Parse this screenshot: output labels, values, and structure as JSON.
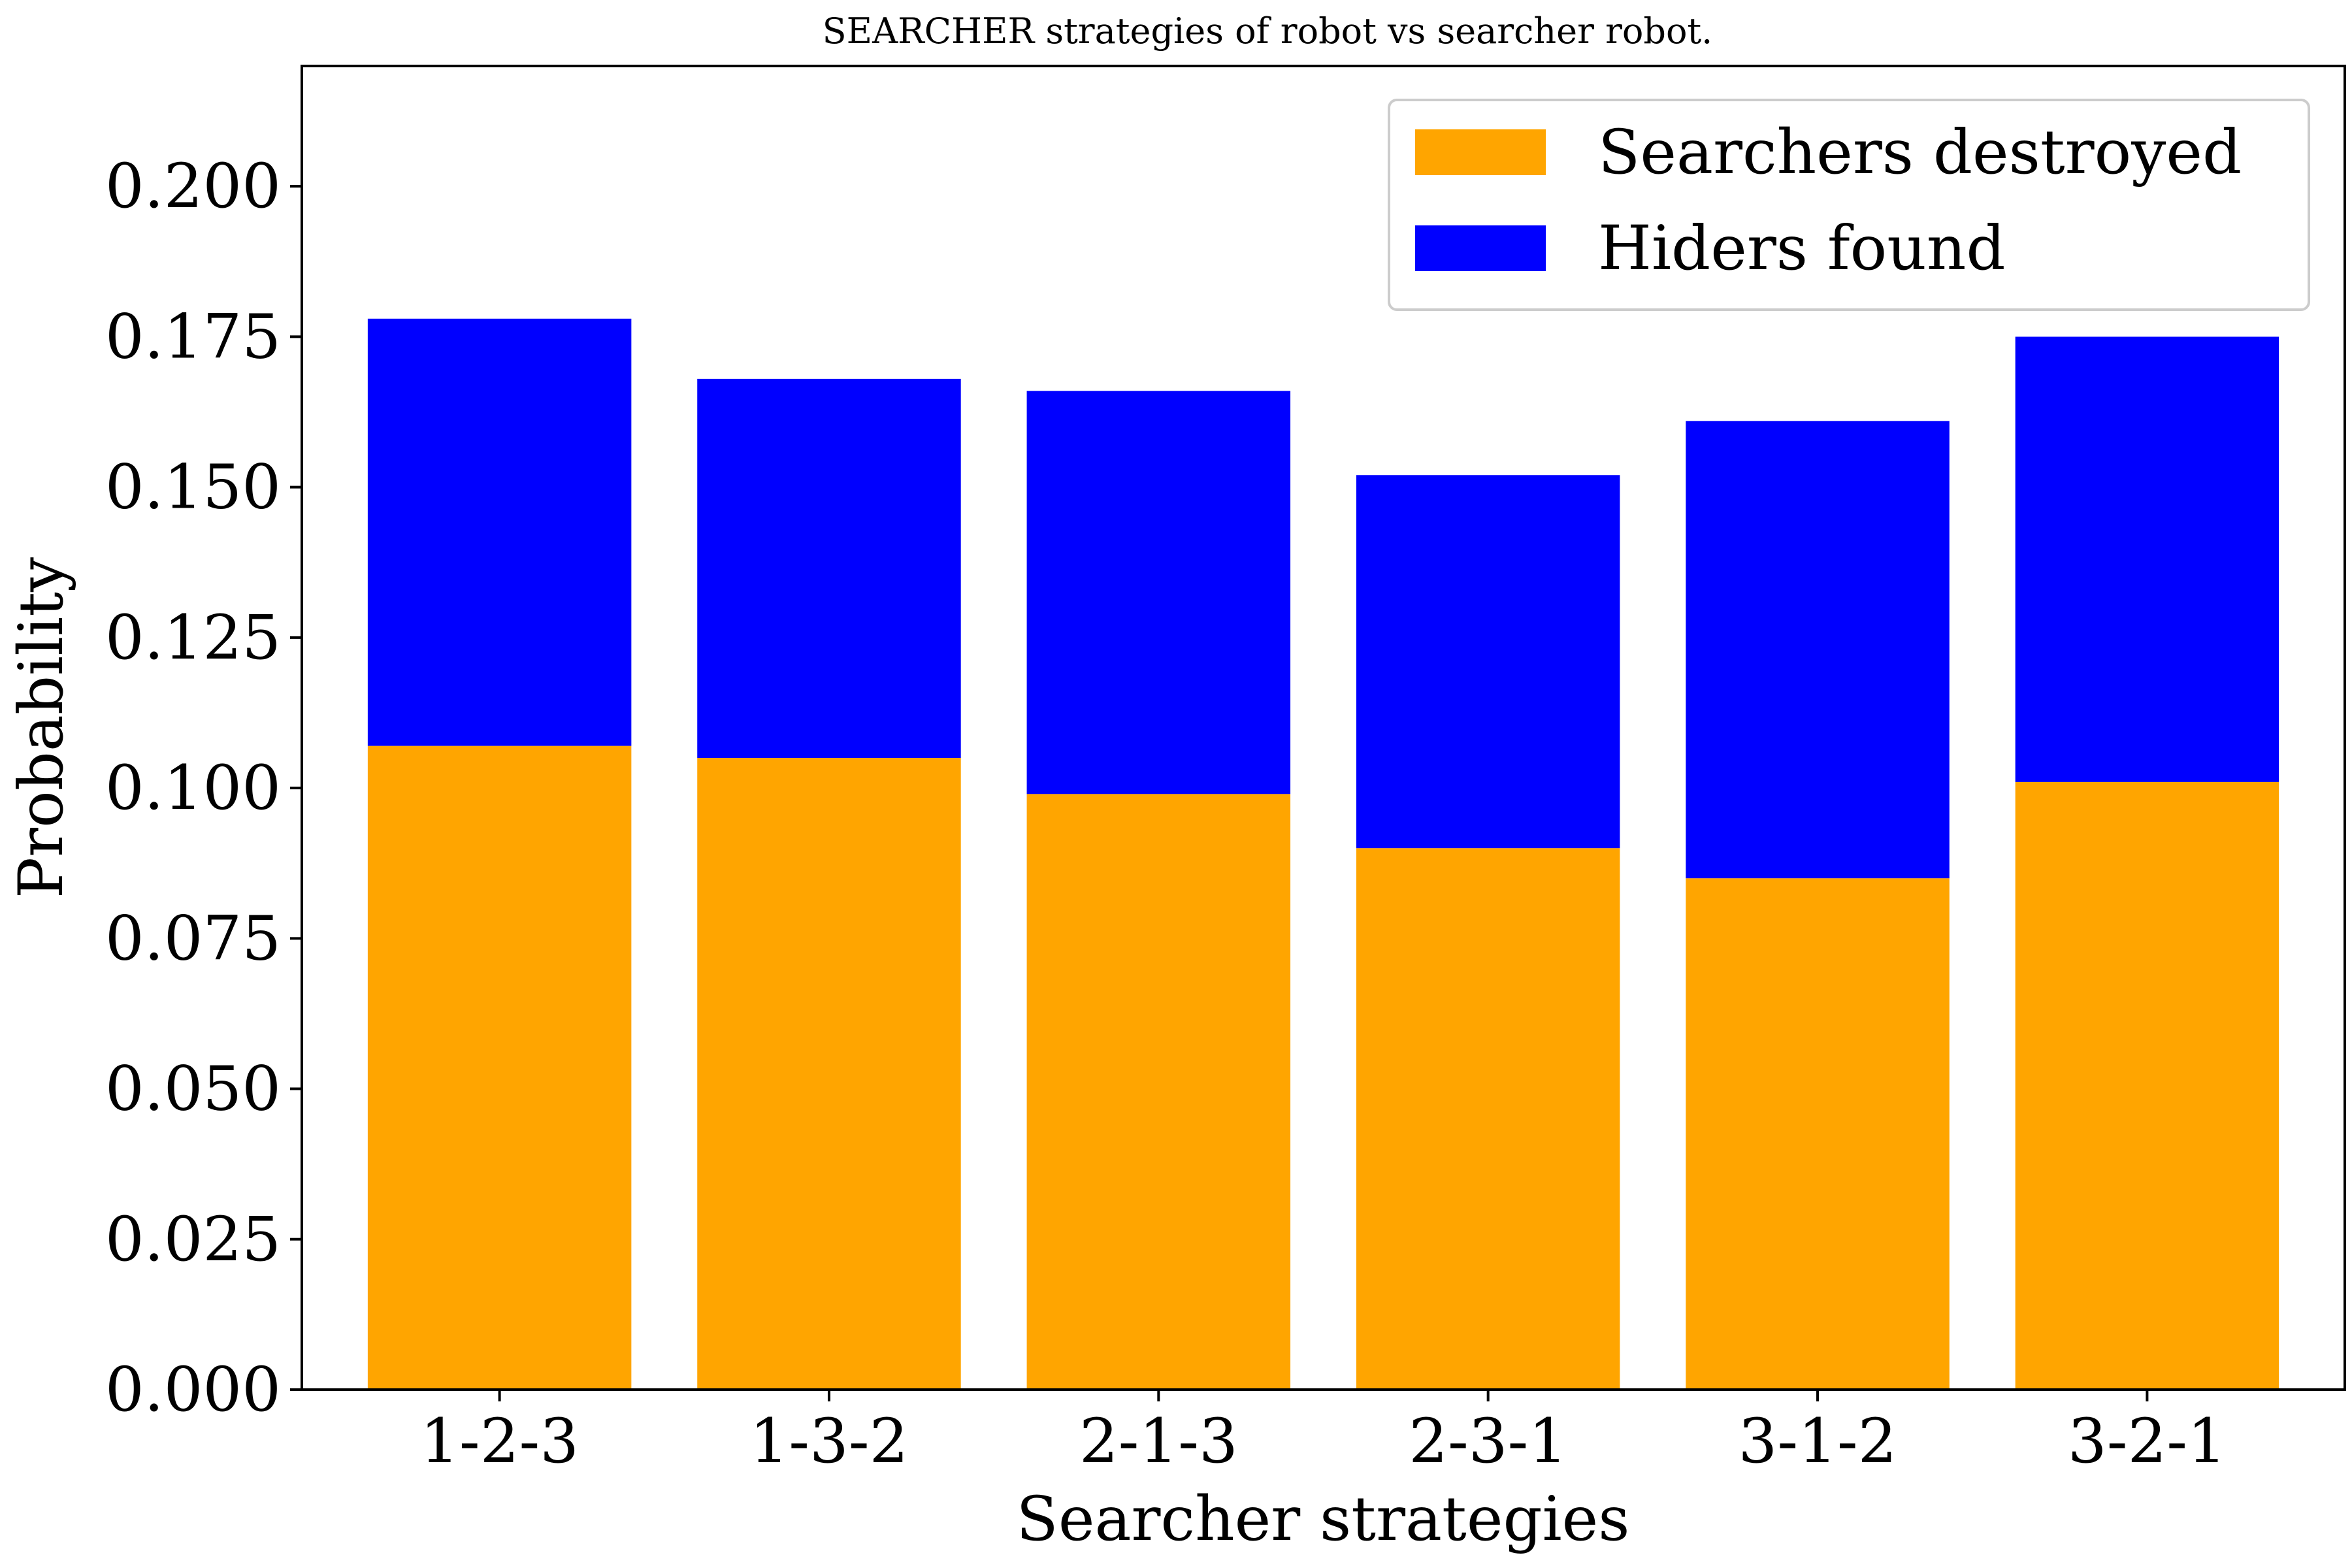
{
  "chart_data": {
    "type": "bar",
    "stacked": true,
    "title": "SEARCHER strategies of robot vs searcher robot.",
    "xlabel": "Searcher strategies",
    "ylabel": "Probability",
    "categories": [
      "1-2-3",
      "1-3-2",
      "2-1-3",
      "2-3-1",
      "3-1-2",
      "3-2-1"
    ],
    "series": [
      {
        "name": "Searchers destroyed",
        "color": "#FFA500",
        "values": [
          0.107,
          0.105,
          0.099,
          0.09,
          0.085,
          0.101
        ]
      },
      {
        "name": "Hiders found",
        "color": "#0000FF",
        "values": [
          0.071,
          0.063,
          0.067,
          0.062,
          0.076,
          0.074
        ]
      }
    ],
    "ylim": [
      0,
      0.22
    ],
    "yticks": [
      "0.000",
      "0.025",
      "0.050",
      "0.075",
      "0.100",
      "0.125",
      "0.150",
      "0.175",
      "0.200"
    ],
    "grid": false,
    "legend_position": "top-right"
  }
}
